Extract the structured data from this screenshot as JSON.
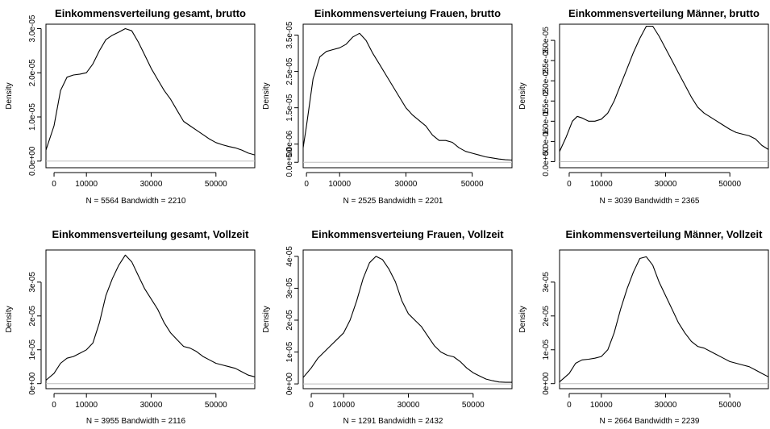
{
  "chart_data": [
    {
      "type": "line",
      "title": "Einkommensverteilung gesamt, brutto",
      "ylabel": "Density",
      "sub": "N = 5564   Bandwidth = 2210",
      "xlim": [
        -2500,
        62000
      ],
      "ylim": [
        -1.5e-06,
        3.1e-05
      ],
      "xticks": [
        {
          "v": 0,
          "l": "0"
        },
        {
          "v": 10000,
          "l": "10000"
        },
        {
          "v": 30000,
          "l": "30000"
        },
        {
          "v": 50000,
          "l": "50000"
        }
      ],
      "yticks": [
        {
          "v": 0,
          "l": "0.0e+00"
        },
        {
          "v": 1e-05,
          "l": "1.0e-05"
        },
        {
          "v": 2e-05,
          "l": "2.0e-05"
        },
        {
          "v": 3e-05,
          "l": "3.0e-05"
        }
      ],
      "x": [
        -2500,
        0,
        2000,
        4000,
        6000,
        8000,
        10000,
        12000,
        14000,
        16000,
        18000,
        20000,
        22000,
        24000,
        26000,
        28000,
        30000,
        32000,
        34000,
        36000,
        38000,
        40000,
        42000,
        44000,
        46000,
        48000,
        50000,
        52000,
        54000,
        56000,
        58000,
        60000,
        62000
      ],
      "y": [
        2.5e-06,
        8e-06,
        1.6e-05,
        1.9e-05,
        1.95e-05,
        1.97e-05,
        2e-05,
        2.2e-05,
        2.5e-05,
        2.75e-05,
        2.85e-05,
        2.92e-05,
        3e-05,
        2.95e-05,
        2.7e-05,
        2.4e-05,
        2.1e-05,
        1.85e-05,
        1.6e-05,
        1.4e-05,
        1.15e-05,
        9e-06,
        8e-06,
        7e-06,
        6e-06,
        5e-06,
        4.2e-06,
        3.7e-06,
        3.3e-06,
        3e-06,
        2.5e-06,
        1.8e-06,
        1.4e-06
      ]
    },
    {
      "type": "line",
      "title": "Einkommensverteiung Frauen, brutto",
      "ylabel": "Density",
      "sub": "N = 2525   Bandwidth = 2201",
      "xlim": [
        -1000,
        62000
      ],
      "ylim": [
        -1.5e-06,
        3.8e-05
      ],
      "xticks": [
        {
          "v": 0,
          "l": "0"
        },
        {
          "v": 10000,
          "l": "10000"
        },
        {
          "v": 30000,
          "l": "30000"
        },
        {
          "v": 50000,
          "l": "50000"
        }
      ],
      "yticks": [
        {
          "v": 0,
          "l": "0.0e+00"
        },
        {
          "v": 5e-06,
          "l": "5.0e-06"
        },
        {
          "v": 1.5e-05,
          "l": "1.5e-05"
        },
        {
          "v": 2.5e-05,
          "l": "2.5e-05"
        },
        {
          "v": 3.5e-05,
          "l": "3.5e-05"
        }
      ],
      "x": [
        -1000,
        0,
        2000,
        4000,
        6000,
        8000,
        10000,
        12000,
        14000,
        16000,
        18000,
        20000,
        22000,
        24000,
        26000,
        28000,
        30000,
        32000,
        34000,
        36000,
        38000,
        40000,
        42000,
        44000,
        46000,
        48000,
        50000,
        52000,
        54000,
        56000,
        58000,
        60000,
        62000
      ],
      "y": [
        4e-06,
        1e-05,
        2.3e-05,
        2.9e-05,
        3.05e-05,
        3.1e-05,
        3.15e-05,
        3.25e-05,
        3.45e-05,
        3.55e-05,
        3.35e-05,
        3e-05,
        2.7e-05,
        2.4e-05,
        2.1e-05,
        1.8e-05,
        1.5e-05,
        1.3e-05,
        1.15e-05,
        1e-05,
        7.5e-06,
        6e-06,
        6e-06,
        5.5e-06,
        4e-06,
        3e-06,
        2.5e-06,
        2e-06,
        1.5e-06,
        1.2e-06,
        9e-07,
        7e-07,
        6e-07
      ]
    },
    {
      "type": "line",
      "title": "Einkommensverteilung Männer, brutto",
      "ylabel": "Density",
      "sub": "N = 3039   Bandwidth = 2365",
      "xlim": [
        -3000,
        62000
      ],
      "ylim": [
        -1.5e-06,
        3.4e-05
      ],
      "xticks": [
        {
          "v": 0,
          "l": "0"
        },
        {
          "v": 10000,
          "l": "10000"
        },
        {
          "v": 30000,
          "l": "30000"
        },
        {
          "v": 50000,
          "l": "50000"
        }
      ],
      "yticks": [
        {
          "v": 0,
          "l": "0.0e+00"
        },
        {
          "v": 5e-06,
          "l": "5.0e-06"
        },
        {
          "v": 1e-05,
          "l": "1.0e-05"
        },
        {
          "v": 1.5e-05,
          "l": "1.5e-05"
        },
        {
          "v": 2e-05,
          "l": "2.0e-05"
        },
        {
          "v": 2.5e-05,
          "l": "2.5e-05"
        },
        {
          "v": 3e-05,
          "l": "3.0e-05"
        }
      ],
      "x": [
        -3000,
        -1000,
        1000,
        2500,
        4000,
        6000,
        8000,
        10000,
        12000,
        14000,
        16000,
        18000,
        20000,
        22000,
        24000,
        26000,
        28000,
        30000,
        32000,
        34000,
        36000,
        38000,
        40000,
        42000,
        44000,
        46000,
        48000,
        50000,
        52000,
        54000,
        56000,
        58000,
        60000,
        62000
      ],
      "y": [
        2.5e-06,
        6e-06,
        1e-05,
        1.12e-05,
        1.08e-05,
        1e-05,
        1e-05,
        1.05e-05,
        1.2e-05,
        1.5e-05,
        1.9e-05,
        2.3e-05,
        2.7e-05,
        3.05e-05,
        3.35e-05,
        3.35e-05,
        3.1e-05,
        2.8e-05,
        2.5e-05,
        2.2e-05,
        1.9e-05,
        1.6e-05,
        1.35e-05,
        1.2e-05,
        1.1e-05,
        1e-05,
        9e-06,
        8e-06,
        7.2e-06,
        6.8e-06,
        6.4e-06,
        5.6e-06,
        4e-06,
        3e-06
      ]
    },
    {
      "type": "line",
      "title": "Einkommensverteilung gesamt, Vollzeit",
      "ylabel": "Density",
      "sub": "N = 3955   Bandwidth = 2116",
      "xlim": [
        -2500,
        62000
      ],
      "ylim": [
        -1.5e-06,
        3.95e-05
      ],
      "xticks": [
        {
          "v": 0,
          "l": "0"
        },
        {
          "v": 10000,
          "l": "10000"
        },
        {
          "v": 30000,
          "l": "30000"
        },
        {
          "v": 50000,
          "l": "50000"
        }
      ],
      "yticks": [
        {
          "v": 0,
          "l": "0e+00"
        },
        {
          "v": 1e-05,
          "l": "1e-05"
        },
        {
          "v": 2e-05,
          "l": "2e-05"
        },
        {
          "v": 3e-05,
          "l": "3e-05"
        }
      ],
      "x": [
        -2500,
        0,
        2000,
        4000,
        6000,
        8000,
        10000,
        12000,
        14000,
        16000,
        18000,
        20000,
        22000,
        24000,
        26000,
        28000,
        30000,
        32000,
        34000,
        36000,
        38000,
        40000,
        42000,
        44000,
        46000,
        48000,
        50000,
        52000,
        54000,
        56000,
        58000,
        60000,
        62000
      ],
      "y": [
        1e-06,
        3e-06,
        6e-06,
        7.5e-06,
        8e-06,
        9e-06,
        1e-05,
        1.2e-05,
        1.8e-05,
        2.6e-05,
        3.1e-05,
        3.5e-05,
        3.8e-05,
        3.6e-05,
        3.2e-05,
        2.8e-05,
        2.5e-05,
        2.2e-05,
        1.8e-05,
        1.5e-05,
        1.3e-05,
        1.1e-05,
        1.05e-05,
        9.5e-06,
        8e-06,
        7e-06,
        6e-06,
        5.5e-06,
        5e-06,
        4.5e-06,
        3.5e-06,
        2.5e-06,
        2e-06
      ]
    },
    {
      "type": "line",
      "title": "Einkommensverteiung Frauen, Vollzeit",
      "ylabel": "Density",
      "sub": "N = 1291   Bandwidth = 2432",
      "xlim": [
        -2500,
        62000
      ],
      "ylim": [
        -1.5e-06,
        4.2e-05
      ],
      "xticks": [
        {
          "v": 0,
          "l": "0"
        },
        {
          "v": 10000,
          "l": "10000"
        },
        {
          "v": 30000,
          "l": "30000"
        },
        {
          "v": 50000,
          "l": "50000"
        }
      ],
      "yticks": [
        {
          "v": 0,
          "l": "0e+00"
        },
        {
          "v": 1e-05,
          "l": "1e-05"
        },
        {
          "v": 2e-05,
          "l": "2e-05"
        },
        {
          "v": 3e-05,
          "l": "3e-05"
        },
        {
          "v": 4e-05,
          "l": "4e-05"
        }
      ],
      "x": [
        -2500,
        0,
        2000,
        4000,
        6000,
        8000,
        10000,
        12000,
        14000,
        16000,
        18000,
        20000,
        22000,
        24000,
        26000,
        28000,
        30000,
        32000,
        34000,
        36000,
        38000,
        40000,
        42000,
        44000,
        46000,
        48000,
        50000,
        52000,
        54000,
        56000,
        58000,
        60000,
        62000
      ],
      "y": [
        2e-06,
        5e-06,
        8e-06,
        1e-05,
        1.2e-05,
        1.4e-05,
        1.6e-05,
        2e-05,
        2.6e-05,
        3.3e-05,
        3.8e-05,
        4e-05,
        3.9e-05,
        3.6e-05,
        3.2e-05,
        2.6e-05,
        2.2e-05,
        2e-05,
        1.8e-05,
        1.5e-05,
        1.2e-05,
        1e-05,
        9e-06,
        8.5e-06,
        7e-06,
        5e-06,
        3.5e-06,
        2.5e-06,
        1.5e-06,
        1e-06,
        6e-07,
        5e-07,
        5e-07
      ]
    },
    {
      "type": "line",
      "title": "Einkommensverteilung Männer, Vollzeit",
      "ylabel": "Density",
      "sub": "N = 2664   Bandwidth = 2239",
      "xlim": [
        -3000,
        62000
      ],
      "ylim": [
        -1.5e-06,
        3.95e-05
      ],
      "xticks": [
        {
          "v": 0,
          "l": "0"
        },
        {
          "v": 10000,
          "l": "10000"
        },
        {
          "v": 30000,
          "l": "30000"
        },
        {
          "v": 50000,
          "l": "50000"
        }
      ],
      "yticks": [
        {
          "v": 0,
          "l": "0e+00"
        },
        {
          "v": 1e-05,
          "l": "1e-05"
        },
        {
          "v": 2e-05,
          "l": "2e-05"
        },
        {
          "v": 3e-05,
          "l": "3e-05"
        }
      ],
      "x": [
        -3000,
        0,
        2000,
        4000,
        6000,
        8000,
        10000,
        12000,
        14000,
        16000,
        18000,
        20000,
        22000,
        24000,
        26000,
        28000,
        30000,
        32000,
        34000,
        36000,
        38000,
        40000,
        42000,
        44000,
        46000,
        48000,
        50000,
        52000,
        54000,
        56000,
        58000,
        60000,
        62000
      ],
      "y": [
        5e-07,
        3e-06,
        6e-06,
        7e-06,
        7.2e-06,
        7.5e-06,
        8e-06,
        1e-05,
        1.5e-05,
        2.2e-05,
        2.8e-05,
        3.3e-05,
        3.7e-05,
        3.75e-05,
        3.5e-05,
        3e-05,
        2.6e-05,
        2.2e-05,
        1.8e-05,
        1.5e-05,
        1.25e-05,
        1.1e-05,
        1.05e-05,
        9.5e-06,
        8.5e-06,
        7.5e-06,
        6.5e-06,
        6e-06,
        5.5e-06,
        5e-06,
        4e-06,
        3e-06,
        2e-06
      ]
    }
  ]
}
